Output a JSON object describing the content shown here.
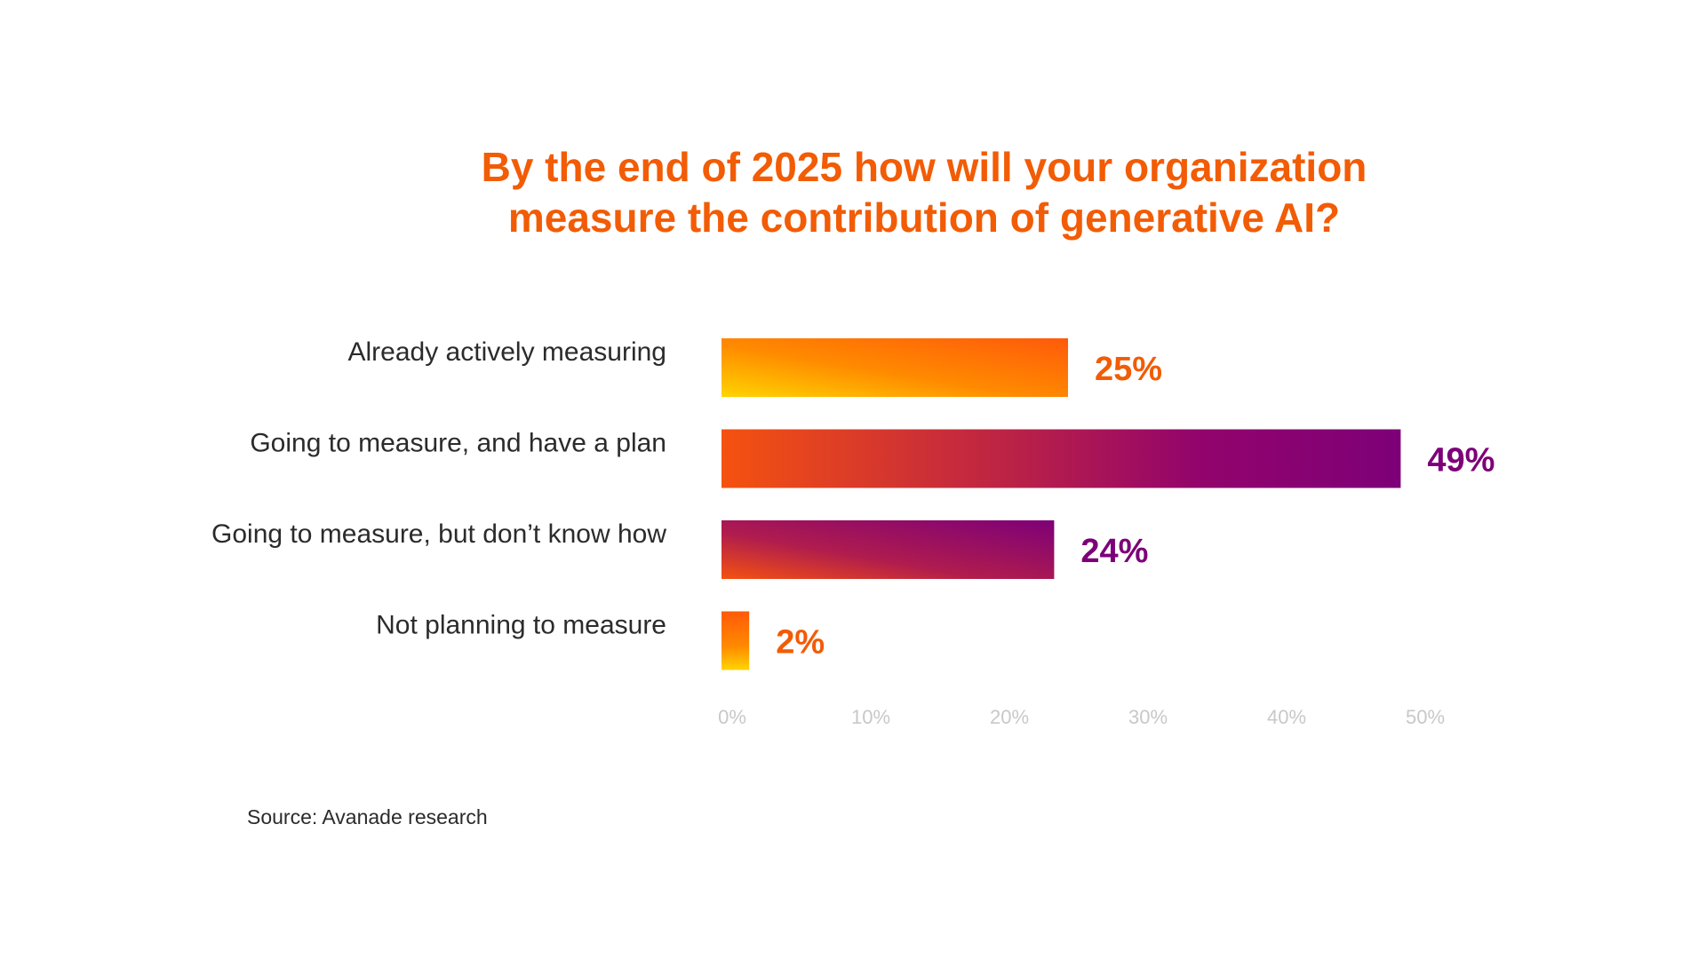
{
  "chart_data": {
    "type": "bar",
    "orientation": "horizontal",
    "title_lines": [
      "By the end of 2025 how will your organization",
      "measure the contribution of generative AI?"
    ],
    "categories": [
      "Already actively measuring",
      "Going to measure, and have a plan",
      "Going to measure, but don’t know how",
      "Not planning to measure"
    ],
    "values": [
      25,
      49,
      24,
      2
    ],
    "value_labels": [
      "25%",
      "49%",
      "24%",
      "2%"
    ],
    "x_ticks": [
      "0%",
      "10%",
      "20%",
      "30%",
      "40%",
      "50%"
    ],
    "xlim": [
      0,
      50
    ],
    "grid": false,
    "legend": "none",
    "colors": {
      "orange": "#f25c05",
      "yellow": "#ffcf00",
      "magenta": "#7d0078",
      "red_orange": "#f3520f"
    },
    "label_colors": [
      "#f25c05",
      "#7d0078",
      "#7d0078",
      "#f25c05"
    ]
  },
  "source": "Source: Avanade research"
}
